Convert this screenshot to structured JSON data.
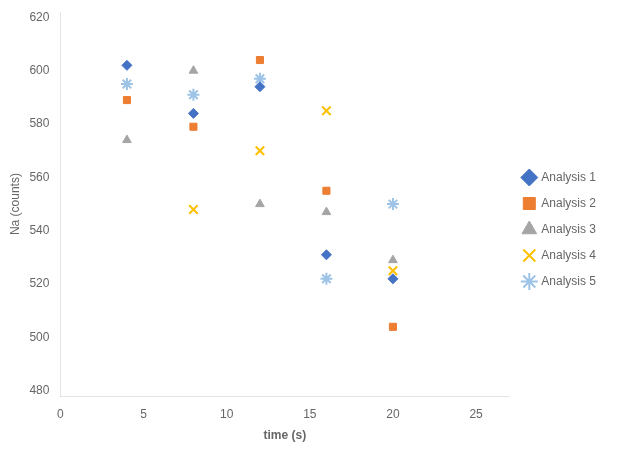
{
  "chart_data": {
    "type": "scatter",
    "xlabel": "time (s)",
    "ylabel": "Na (counts)",
    "series": [
      {
        "name": "Analysis 1",
        "color": "#4472C4",
        "marker": "diamond",
        "x": [
          4,
          8,
          12,
          16,
          20
        ],
        "values": [
          602,
          584,
          594,
          531,
          522
        ]
      },
      {
        "name": "Analysis 2",
        "color": "#ED7D31",
        "marker": "square",
        "x": [
          4,
          8,
          12,
          16,
          20
        ],
        "values": [
          589,
          579,
          604,
          555,
          504
        ]
      },
      {
        "name": "Analysis 3",
        "color": "#A5A5A5",
        "marker": "triangle",
        "x": [
          4,
          8,
          12,
          16,
          20
        ],
        "values": [
          574,
          600,
          550,
          547,
          529
        ]
      },
      {
        "name": "Analysis 4",
        "color": "#FFC000",
        "marker": "x",
        "x": [
          8,
          12,
          16,
          20
        ],
        "values": [
          548,
          570,
          585,
          525
        ]
      },
      {
        "name": "Analysis 5",
        "color": "#9DC3E6",
        "marker": "star",
        "x": [
          4,
          8,
          12,
          16,
          20
        ],
        "values": [
          595,
          591,
          597,
          522,
          550
        ]
      }
    ],
    "xlim": [
      0,
      27
    ],
    "xticks": [
      0,
      5,
      10,
      15,
      20,
      25
    ],
    "ylim": [
      478,
      622
    ],
    "yticks": [
      480,
      500,
      520,
      540,
      560,
      580,
      600,
      620
    ],
    "grid": false,
    "legend": "right"
  }
}
